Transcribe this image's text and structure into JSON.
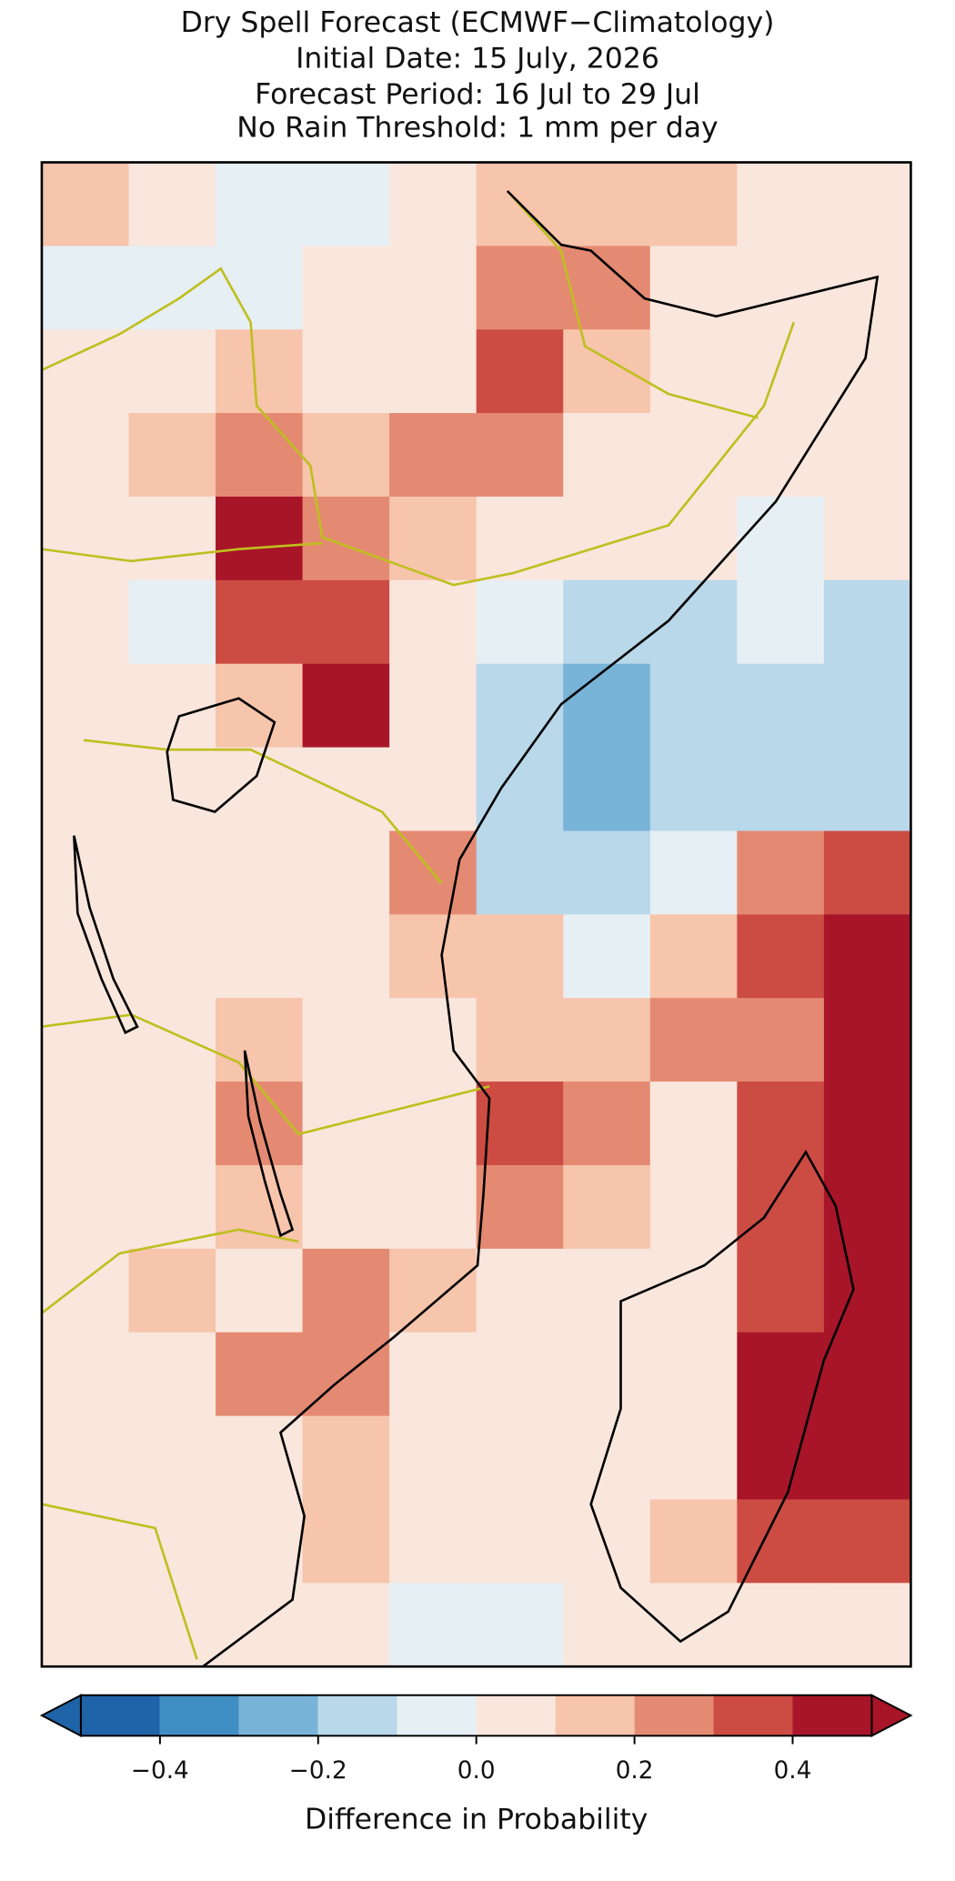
{
  "chart_data": {
    "type": "heatmap",
    "title": [
      "Dry Spell Forecast (ECMWF−Climatology)",
      "Initial Date: 15 July, 2026",
      "Forecast Period: 16 Jul to 29 Jul",
      "No Rain Threshold: 1 mm per day"
    ],
    "z": [
      [
        0.1,
        0.05,
        -0.05,
        -0.05,
        0.05,
        0.15,
        0.15,
        0.15,
        0.05,
        0.05
      ],
      [
        -0.05,
        -0.05,
        -0.05,
        0.05,
        0.05,
        0.25,
        0.25,
        0.05,
        0.05,
        0.05
      ],
      [
        0.05,
        0.05,
        0.15,
        0.05,
        0.05,
        0.35,
        0.15,
        0.05,
        0.05,
        0.05
      ],
      [
        0.05,
        0.15,
        0.25,
        0.15,
        0.25,
        0.25,
        0.05,
        0.05,
        0.05,
        0.05
      ],
      [
        0.05,
        0.05,
        0.45,
        0.25,
        0.15,
        0.05,
        0.05,
        0.05,
        -0.05,
        0.05
      ],
      [
        0.05,
        -0.05,
        0.35,
        0.35,
        0.05,
        -0.05,
        -0.15,
        -0.15,
        -0.05,
        -0.15
      ],
      [
        0.05,
        0.05,
        0.15,
        0.45,
        0.05,
        -0.15,
        -0.25,
        -0.15,
        -0.15,
        -0.15
      ],
      [
        0.05,
        0.05,
        0.05,
        0.05,
        0.05,
        -0.15,
        -0.25,
        -0.15,
        -0.15,
        -0.15
      ],
      [
        0.05,
        0.05,
        0.05,
        0.05,
        0.25,
        -0.15,
        -0.15,
        -0.05,
        0.25,
        0.35
      ],
      [
        0.05,
        0.05,
        0.05,
        0.05,
        0.15,
        0.15,
        -0.05,
        0.15,
        0.35,
        0.45
      ],
      [
        0.05,
        0.05,
        0.15,
        0.05,
        0.05,
        0.15,
        0.15,
        0.25,
        0.25,
        0.45
      ],
      [
        0.05,
        0.05,
        0.25,
        0.05,
        0.05,
        0.35,
        0.25,
        0.05,
        0.35,
        0.45
      ],
      [
        0.05,
        0.05,
        0.15,
        0.05,
        0.05,
        0.25,
        0.15,
        0.05,
        0.35,
        0.45
      ],
      [
        0.05,
        0.15,
        0.05,
        0.25,
        0.15,
        0.05,
        0.05,
        0.05,
        0.35,
        0.45
      ],
      [
        0.05,
        0.05,
        0.25,
        0.25,
        0.05,
        0.05,
        0.05,
        0.05,
        0.45,
        0.45
      ],
      [
        0.05,
        0.05,
        0.05,
        0.15,
        0.05,
        0.05,
        0.05,
        0.05,
        0.45,
        0.45
      ],
      [
        0.05,
        0.05,
        0.05,
        0.15,
        0.05,
        0.05,
        0.05,
        0.15,
        0.35,
        0.35
      ],
      [
        0.05,
        0.05,
        0.05,
        0.05,
        -0.05,
        -0.05,
        0.05,
        0.05,
        0.05,
        0.05
      ]
    ],
    "levels": [
      -0.5,
      -0.4,
      -0.3,
      -0.2,
      -0.1,
      0,
      0.1,
      0.2,
      0.3,
      0.4,
      0.5
    ],
    "colors": [
      "#1f63a8",
      "#3f8ec3",
      "#78b3d8",
      "#b9d8ea",
      "#e6eff4",
      "#f9e6dd",
      "#f7c4ac",
      "#e58a72",
      "#cc4c43",
      "#a81529"
    ],
    "xlim": [
      -0.5,
      0.5
    ],
    "xticks": [
      {
        "value": -0.4,
        "label": "−0.4"
      },
      {
        "value": -0.2,
        "label": "−0.2"
      },
      {
        "value": 0,
        "label": "0.0"
      },
      0.2,
      0.4
    ],
    "xlabel": "Difference in Probability"
  }
}
